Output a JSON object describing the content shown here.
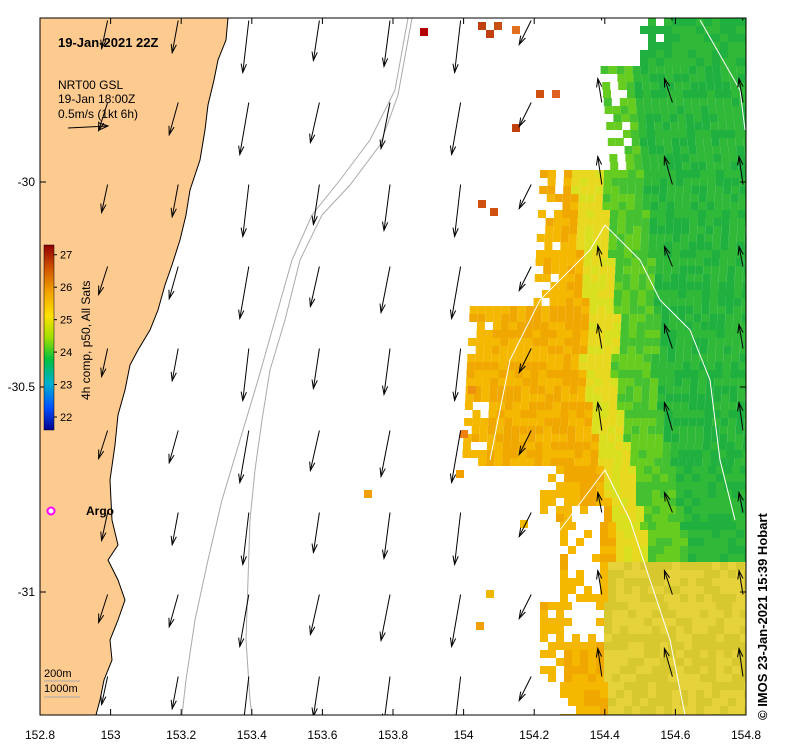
{
  "title": "19-Jan-2021 22Z",
  "current_legend": {
    "line1": "NRT00 GSL",
    "line2": "19-Jan 18:00Z",
    "line3": "0.5m/s (1kt 6h)"
  },
  "colorbar": {
    "label": "4h comp, p50, All Sats",
    "ticks": [
      "27",
      "26",
      "25",
      "24",
      "23",
      "22"
    ],
    "tick_values": [
      27,
      26,
      25,
      24,
      23,
      22
    ],
    "range": [
      21.6,
      27.3
    ]
  },
  "argo": {
    "label": "Argo",
    "lon": 152.83,
    "lat": -30.81,
    "color": "#ff00ff"
  },
  "depth_legend": {
    "line1": "200m",
    "line2": "1000m"
  },
  "credit": "© IMOS 23-Jan-2021 15:39 Hobart",
  "axes": {
    "lon_ticks": [
      "152.8",
      "153",
      "153.2",
      "153.4",
      "153.6",
      "153.8",
      "154",
      "154.2",
      "154.4",
      "154.6",
      "154.8"
    ],
    "lon_values": [
      152.8,
      153.0,
      153.2,
      153.4,
      153.6,
      153.8,
      154.0,
      154.2,
      154.4,
      154.6,
      154.8
    ],
    "lat_ticks": [
      "-30",
      "-30.5",
      "-31"
    ],
    "lat_values": [
      -30.0,
      -30.5,
      -31.0
    ],
    "lon_range": [
      152.8,
      154.8
    ],
    "lat_range": [
      -31.3,
      -29.6
    ]
  },
  "colors": {
    "land": "#fdca90",
    "coast": "#000000"
  }
}
